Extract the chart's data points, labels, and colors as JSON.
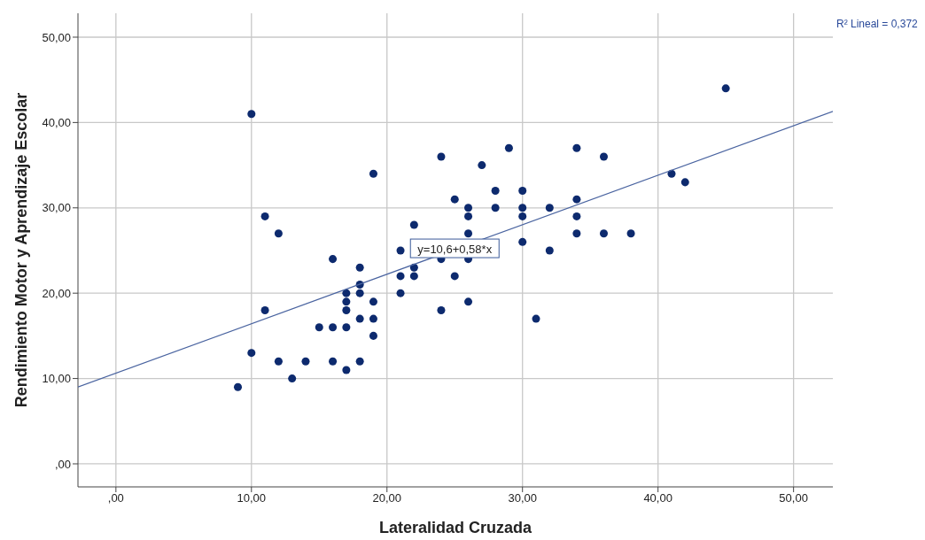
{
  "chart_data": {
    "type": "scatter",
    "xlabel": "Lateralidad Cruzada",
    "ylabel": "Rendimiento Motor y Aprendizaje Escolar",
    "xlim": [
      -2.8,
      52.9
    ],
    "ylim": [
      -2.7,
      52.8
    ],
    "xticks": [
      {
        "value": 0,
        "label": ",00"
      },
      {
        "value": 10,
        "label": "10,00"
      },
      {
        "value": 20,
        "label": "20,00"
      },
      {
        "value": 30,
        "label": "30,00"
      },
      {
        "value": 40,
        "label": "40,00"
      },
      {
        "value": 50,
        "label": "50,00"
      }
    ],
    "yticks": [
      {
        "value": 0,
        "label": ",00"
      },
      {
        "value": 10,
        "label": "10,00"
      },
      {
        "value": 20,
        "label": "20,00"
      },
      {
        "value": 30,
        "label": "30,00"
      },
      {
        "value": 40,
        "label": "40,00"
      },
      {
        "value": 50,
        "label": "50,00"
      }
    ],
    "grid": true,
    "series": [
      {
        "marker": "circle",
        "color": "#0d2a6e",
        "x": [
          9,
          10,
          10,
          11,
          11,
          12,
          12,
          13,
          14,
          15,
          16,
          16,
          16,
          17,
          17,
          17,
          17,
          17,
          18,
          18,
          18,
          18,
          18,
          19,
          19,
          19,
          19,
          21,
          21,
          21,
          22,
          22,
          22,
          24,
          24,
          24,
          25,
          25,
          26,
          26,
          26,
          26,
          26,
          27,
          28,
          28,
          29,
          30,
          30,
          30,
          30,
          31,
          32,
          32,
          34,
          34,
          34,
          34,
          36,
          36,
          38,
          41,
          42,
          45
        ],
        "values": [
          9,
          41,
          13,
          29,
          18,
          27,
          12,
          10,
          12,
          16,
          24,
          16,
          12,
          20,
          19,
          18,
          16,
          11,
          23,
          21,
          20,
          17,
          12,
          34,
          19,
          17,
          15,
          25,
          22,
          20,
          28,
          23,
          22,
          36,
          24,
          18,
          31,
          22,
          30,
          29,
          27,
          24,
          19,
          35,
          32,
          30,
          37,
          32,
          30,
          29,
          26,
          17,
          30,
          25,
          37,
          31,
          29,
          27,
          36,
          27,
          27,
          34,
          33,
          44
        ]
      },
      {
        "type": "line",
        "marker": "none",
        "color": "#4a64a0",
        "x": [
          -2.8,
          52.9
        ],
        "values": [
          9.0,
          41.3
        ]
      }
    ],
    "annotations": [
      {
        "text": "y=10,6+0,58*x",
        "x": 25,
        "y": 25.2
      },
      "R² Lineal = 0,372"
    ]
  }
}
